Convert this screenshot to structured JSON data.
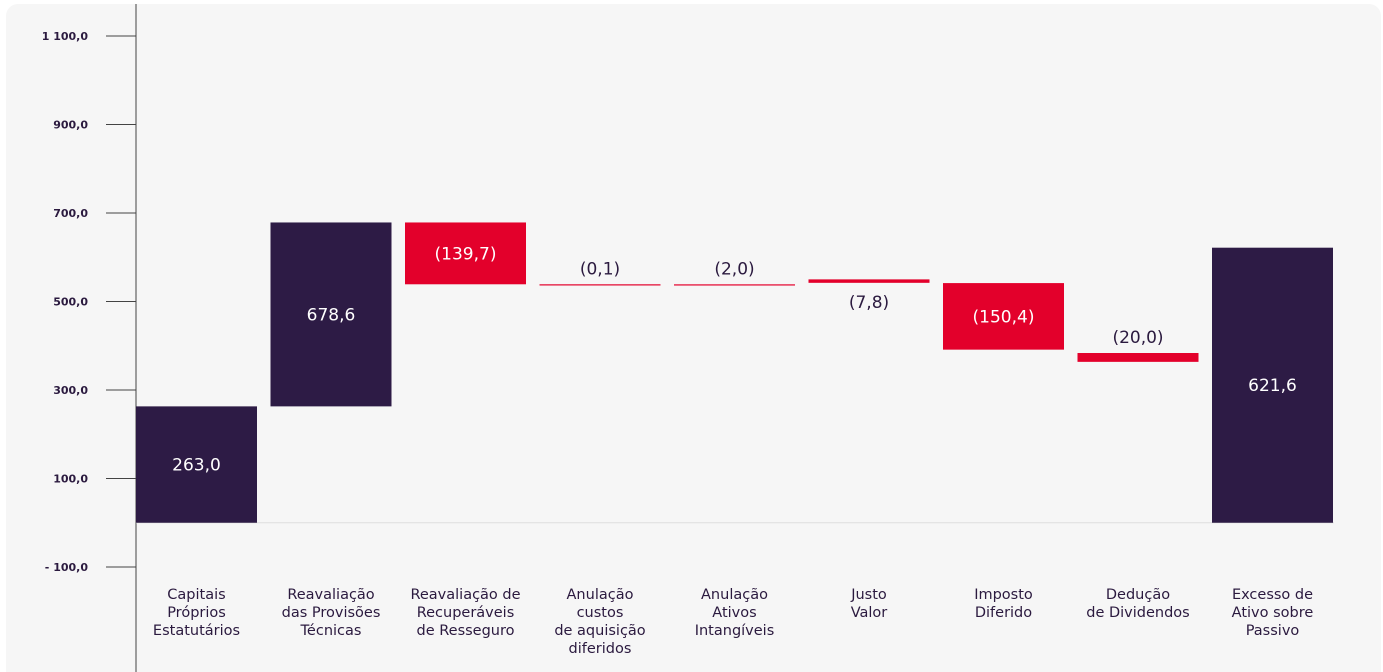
{
  "chart_data": {
    "type": "bar",
    "subtype": "waterfall",
    "title": "",
    "xlabel": "",
    "ylabel": "",
    "ylim": [
      -100,
      1100
    ],
    "yticks": [
      "1 100,0",
      "900,0",
      "700,0",
      "500,0",
      "300,0",
      "100,0",
      "- 100,0"
    ],
    "ytick_values": [
      1100,
      900,
      700,
      500,
      300,
      100,
      -100
    ],
    "grid": false,
    "categories": [
      [
        "Capitais",
        "Próprios",
        "Estatutários"
      ],
      [
        "Reavaliação",
        "das Provisões",
        "Técnicas"
      ],
      [
        "Reavaliação de",
        "Recuperáveis",
        "de Resseguro"
      ],
      [
        "Anulação",
        "custos",
        "de aquisição",
        "diferidos"
      ],
      [
        "Anulação",
        "Ativos",
        "Intangíveis"
      ],
      [
        "Justo",
        "Valor"
      ],
      [
        "Imposto",
        "Diferido"
      ],
      [
        "Dedução",
        "de Dividendos"
      ],
      [
        "Excesso de",
        "Ativo sobre",
        "Passivo"
      ]
    ],
    "bars": [
      {
        "kind": "total",
        "start": 0,
        "end": 263.0,
        "label": "263,0"
      },
      {
        "kind": "total",
        "start": 263.0,
        "end": 678.6,
        "label": "678,6"
      },
      {
        "kind": "decrease",
        "start": 678.6,
        "end": 538.9,
        "label": "(139,7)"
      },
      {
        "kind": "decrease",
        "start": 538.9,
        "end": 538.8,
        "label": "(0,1)"
      },
      {
        "kind": "decrease",
        "start": 538.8,
        "end": 536.8,
        "label": "(2,0)"
      },
      {
        "kind": "decrease",
        "start": 550.0,
        "end": 542.2,
        "label": "(7,8)"
      },
      {
        "kind": "decrease",
        "start": 541.6,
        "end": 391.2,
        "label": "(150,4)"
      },
      {
        "kind": "decrease",
        "start": 383.6,
        "end": 363.6,
        "label": "(20,0)"
      },
      {
        "kind": "total",
        "start": 0,
        "end": 621.6,
        "label": "621,6"
      }
    ],
    "colors": {
      "total": "#2d1b45",
      "decrease": "#e3002b",
      "axis": "#444444",
      "total_label": "#ffffff",
      "outside_label": "#2b1a3f"
    }
  }
}
